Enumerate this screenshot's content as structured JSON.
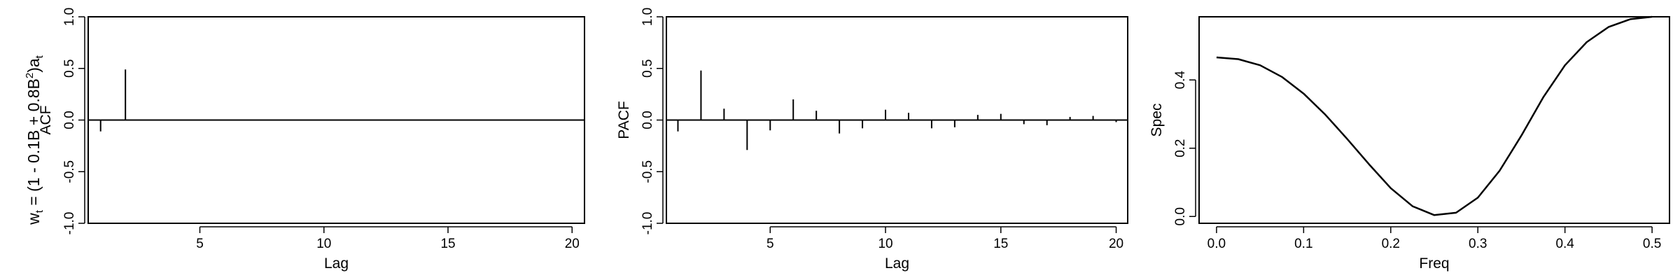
{
  "figure": {
    "side_title": {
      "base": "w",
      "sub_t": "t",
      "middle": " = (1 - 0.1B + 0.8B",
      "sup_2": "2",
      "close": ")a",
      "sub_t2": "t"
    }
  },
  "chart_data": [
    {
      "type": "bar",
      "title": "",
      "xlabel": "Lag",
      "ylabel": "ACF",
      "xlim": [
        0.5,
        20.5
      ],
      "ylim": [
        -1.0,
        1.0
      ],
      "xticks": [
        5,
        10,
        15,
        20
      ],
      "xtick_labels": [
        "5",
        "10",
        "15",
        "20"
      ],
      "yticks": [
        -1.0,
        -0.5,
        0.0,
        0.5,
        1.0
      ],
      "ytick_labels": [
        "-1.0",
        "-0.5",
        "0.0",
        "0.5",
        "1.0"
      ],
      "x": [
        1,
        2,
        3,
        4,
        5,
        6,
        7,
        8,
        9,
        10,
        11,
        12,
        13,
        14,
        15,
        16,
        17,
        18,
        19,
        20
      ],
      "values": [
        -0.11,
        0.49,
        0,
        0,
        0,
        0,
        0,
        0,
        0,
        0,
        0,
        0,
        0,
        0,
        0,
        0,
        0,
        0,
        0,
        0
      ],
      "grid": false
    },
    {
      "type": "bar",
      "title": "",
      "xlabel": "Lag",
      "ylabel": "PACF",
      "xlim": [
        0.5,
        20.5
      ],
      "ylim": [
        -1.0,
        1.0
      ],
      "xticks": [
        5,
        10,
        15,
        20
      ],
      "xtick_labels": [
        "5",
        "10",
        "15",
        "20"
      ],
      "yticks": [
        -1.0,
        -0.5,
        0.0,
        0.5,
        1.0
      ],
      "ytick_labels": [
        "-1.0",
        "-0.5",
        "0.0",
        "0.5",
        "1.0"
      ],
      "x": [
        1,
        2,
        3,
        4,
        5,
        6,
        7,
        8,
        9,
        10,
        11,
        12,
        13,
        14,
        15,
        16,
        17,
        18,
        19,
        20
      ],
      "values": [
        -0.11,
        0.48,
        0.11,
        -0.29,
        -0.1,
        0.2,
        0.09,
        -0.13,
        -0.08,
        0.1,
        0.07,
        -0.08,
        -0.07,
        0.05,
        0.06,
        -0.04,
        -0.05,
        0.03,
        0.04,
        -0.02
      ],
      "grid": false
    },
    {
      "type": "line",
      "title": "",
      "xlabel": "Freq",
      "ylabel": "Spec",
      "xlim": [
        -0.02,
        0.52
      ],
      "ylim": [
        -0.02,
        0.585
      ],
      "xticks": [
        0.0,
        0.1,
        0.2,
        0.3,
        0.4,
        0.5
      ],
      "xtick_labels": [
        "0.0",
        "0.1",
        "0.2",
        "0.3",
        "0.4",
        "0.5"
      ],
      "yticks": [
        0.0,
        0.2,
        0.4
      ],
      "ytick_labels": [
        "0.0",
        "0.2",
        "0.4"
      ],
      "x": [
        0.0,
        0.025,
        0.05,
        0.075,
        0.1,
        0.125,
        0.15,
        0.175,
        0.2,
        0.225,
        0.25,
        0.275,
        0.3,
        0.325,
        0.35,
        0.375,
        0.4,
        0.425,
        0.45,
        0.475,
        0.5
      ],
      "values": [
        0.466,
        0.461,
        0.443,
        0.409,
        0.36,
        0.298,
        0.227,
        0.153,
        0.083,
        0.03,
        0.004,
        0.011,
        0.055,
        0.134,
        0.237,
        0.349,
        0.443,
        0.511,
        0.555,
        0.578,
        0.585
      ],
      "grid": false
    }
  ]
}
